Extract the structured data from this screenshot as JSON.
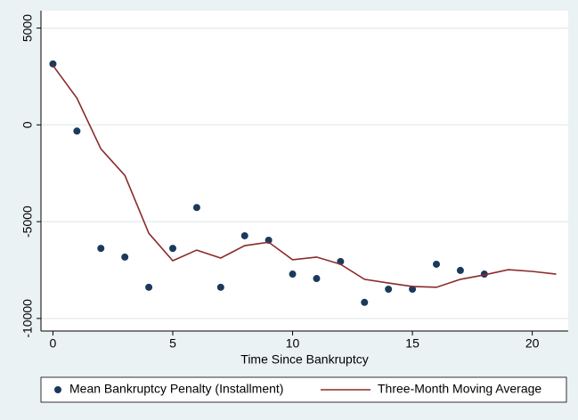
{
  "chart_data": {
    "type": "scatter-line",
    "x_label": "Time Since Bankruptcy",
    "xlim": [
      -0.5,
      21.5
    ],
    "xticks": [
      0,
      5,
      10,
      15,
      20
    ],
    "ylim": [
      -10650,
      5900
    ],
    "yticks": [
      -10000,
      -5000,
      0,
      5000
    ],
    "grid": true,
    "series": [
      {
        "name": "Mean Bankruptcy Penalty (Installment)",
        "kind": "scatter",
        "color": "#1a3a5c",
        "x": [
          0,
          1,
          2,
          3,
          4,
          5,
          6,
          7,
          8,
          9,
          10,
          11,
          12,
          13,
          14,
          15,
          16,
          17,
          18
        ],
        "values": [
          3150,
          -320,
          -6380,
          -6830,
          -8390,
          -6380,
          -4270,
          -8390,
          -5730,
          -5960,
          -7710,
          -7940,
          -7060,
          -9170,
          -8490,
          -8490,
          -7200,
          -7520,
          -7710
        ]
      },
      {
        "name": "Three-Month Moving Average",
        "kind": "line",
        "color": "#8b2a2a",
        "x": [
          0,
          1,
          2,
          3,
          4,
          5,
          6,
          7,
          8,
          9,
          10,
          11,
          12,
          13,
          14,
          15,
          16,
          17,
          18,
          19,
          20,
          21
        ],
        "values": [
          3070,
          1380,
          -1240,
          -2610,
          -5600,
          -7020,
          -6470,
          -6880,
          -6240,
          -6060,
          -6970,
          -6830,
          -7200,
          -7980,
          -8170,
          -8350,
          -8390,
          -7980,
          -7750,
          -7480,
          -7570,
          -7710
        ]
      }
    ]
  }
}
